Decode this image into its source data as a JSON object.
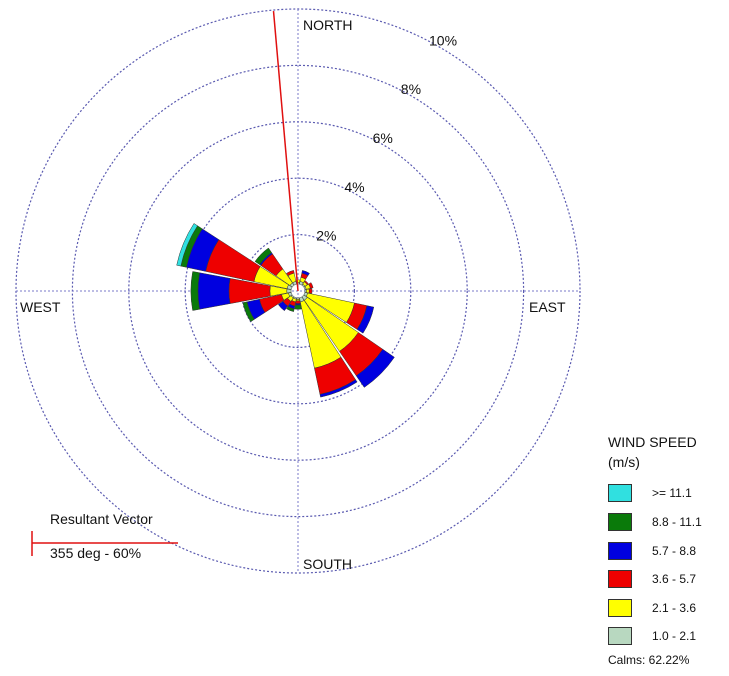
{
  "chart_data": {
    "type": "wind-rose",
    "directions_deg": [
      0,
      22.5,
      45,
      67.5,
      90,
      112.5,
      135,
      157.5,
      180,
      202.5,
      225,
      247.5,
      270,
      292.5,
      315,
      337.5
    ],
    "rings_percent": [
      2,
      4,
      6,
      8,
      10
    ],
    "ring_labels": [
      "2%",
      "4%",
      "6%",
      "8%",
      "10%"
    ],
    "direction_labels": {
      "north": "NORTH",
      "east": "EAST",
      "south": "SOUTH",
      "west": "WEST"
    },
    "legend": {
      "title_line1": "WIND SPEED",
      "title_line2": "(m/s)",
      "calms": "Calms: 62.22%"
    },
    "series": [
      {
        "label": ">= 11.1",
        "color": "#30e0e0",
        "values": [
          0,
          0,
          0,
          0,
          0,
          0,
          0,
          0,
          0,
          0,
          0,
          0,
          0,
          0.15,
          0,
          0
        ]
      },
      {
        "label": "8.8 - 11.1",
        "color": "#0a7a0a",
        "values": [
          0,
          0,
          0,
          0,
          0,
          0,
          0,
          0,
          0.15,
          0.1,
          0,
          0.15,
          0.25,
          0.2,
          0.2,
          0
        ]
      },
      {
        "label": "5.7 -  8.8",
        "color": "#0000e0",
        "values": [
          0,
          0.1,
          0,
          0,
          0,
          0.25,
          0.5,
          0.1,
          0.05,
          0.1,
          0.2,
          0.45,
          1.1,
          0.7,
          0.05,
          0
        ]
      },
      {
        "label": "3.6 -  5.7",
        "color": "#ee0000",
        "values": [
          0,
          0.15,
          0.05,
          0.1,
          0.1,
          0.45,
          1.05,
          0.95,
          0.1,
          0.15,
          0.2,
          0.8,
          1.45,
          1.75,
          0.65,
          0.1
        ]
      },
      {
        "label": "2.1 -  3.6",
        "color": "#ffff00",
        "values": [
          0.1,
          0.15,
          0.1,
          0.15,
          0.1,
          1.7,
          2.2,
          2.4,
          0.05,
          0.1,
          0.15,
          0.25,
          0.6,
          1.2,
          0.6,
          0.3
        ]
      },
      {
        "label": "1.0 -  2.1",
        "color": "#b8d8c0",
        "values": [
          0.05,
          0.1,
          0.05,
          0.05,
          0.05,
          0.1,
          0.15,
          0.15,
          0.05,
          0.05,
          0.05,
          0.1,
          0.15,
          0.15,
          0.1,
          0.1
        ]
      }
    ],
    "resultant_vector": {
      "title": "Resultant Vector",
      "label": "355 deg - 60%",
      "direction_deg": 355,
      "color": "#e01010"
    }
  }
}
